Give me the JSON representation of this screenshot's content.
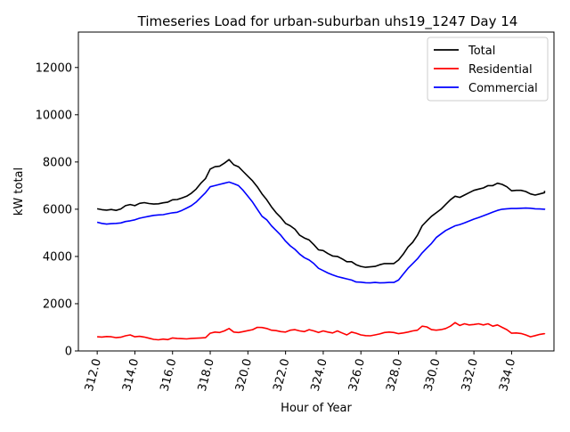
{
  "chart_data": {
    "type": "line",
    "title": "Timeseries Load for urban-suburban uhs19_1247  Day 14",
    "xlabel": "Hour of Year",
    "ylabel": "kW total",
    "xlim": [
      311.0,
      336.25
    ],
    "ylim": [
      0,
      13500
    ],
    "xticks": [
      312,
      314,
      316,
      318,
      320,
      322,
      324,
      326,
      328,
      330,
      332,
      334
    ],
    "xtick_labels": [
      "312.0",
      "314.0",
      "316.0",
      "318.0",
      "320.0",
      "322.0",
      "324.0",
      "326.0",
      "328.0",
      "330.0",
      "332.0",
      "334.0"
    ],
    "yticks": [
      0,
      2000,
      4000,
      6000,
      8000,
      10000,
      12000
    ],
    "ytick_labels": [
      "0",
      "2000",
      "4000",
      "6000",
      "8000",
      "10000",
      "12000"
    ],
    "legend_position": "top-right",
    "grid": false,
    "x": [
      312.0,
      312.25,
      312.5,
      312.75,
      313.0,
      313.25,
      313.5,
      313.75,
      314.0,
      314.25,
      314.5,
      314.75,
      315.0,
      315.25,
      315.5,
      315.75,
      316.0,
      316.25,
      316.5,
      316.75,
      317.0,
      317.25,
      317.5,
      317.75,
      318.0,
      318.25,
      318.5,
      318.75,
      319.0,
      319.25,
      319.5,
      319.75,
      320.0,
      320.25,
      320.5,
      320.75,
      321.0,
      321.25,
      321.5,
      321.75,
      322.0,
      322.25,
      322.5,
      322.75,
      323.0,
      323.25,
      323.5,
      323.75,
      324.0,
      324.25,
      324.5,
      324.75,
      325.0,
      325.25,
      325.5,
      325.75,
      326.0,
      326.25,
      326.5,
      326.75,
      327.0,
      327.25,
      327.5,
      327.75,
      328.0,
      328.25,
      328.5,
      328.75,
      329.0,
      329.25,
      329.5,
      329.75,
      330.0,
      330.25,
      330.5,
      330.75,
      331.0,
      331.25,
      331.5,
      331.75,
      332.0,
      332.25,
      332.5,
      332.75,
      333.0,
      333.25,
      333.5,
      333.75,
      334.0,
      334.25,
      334.5,
      334.75,
      335.0,
      335.25,
      335.5,
      335.75
    ],
    "series": [
      {
        "name": "Total",
        "color": "#000000",
        "values": [
          6020,
          5980,
          5960,
          5990,
          5950,
          6010,
          6150,
          6200,
          6150,
          6250,
          6280,
          6240,
          6220,
          6230,
          6270,
          6300,
          6400,
          6410,
          6480,
          6550,
          6680,
          6850,
          7100,
          7300,
          7700,
          7800,
          7820,
          7950,
          8100,
          7880,
          7800,
          7600,
          7400,
          7200,
          6950,
          6650,
          6400,
          6100,
          5850,
          5650,
          5400,
          5300,
          5150,
          4900,
          4780,
          4700,
          4500,
          4280,
          4250,
          4120,
          4020,
          4000,
          3900,
          3780,
          3780,
          3650,
          3580,
          3540,
          3560,
          3580,
          3650,
          3700,
          3700,
          3700,
          3850,
          4100,
          4400,
          4600,
          4900,
          5300,
          5500,
          5700,
          5850,
          6000,
          6200,
          6400,
          6550,
          6500,
          6600,
          6700,
          6800,
          6850,
          6900,
          7000,
          7000,
          7100,
          7050,
          6950,
          6780,
          6800,
          6800,
          6750,
          6650,
          6600,
          6650,
          6700
        ],
        "end_value": 6780
      },
      {
        "name": "Residential",
        "color": "#ff0000",
        "values": [
          600,
          590,
          610,
          600,
          560,
          580,
          640,
          680,
          600,
          620,
          590,
          540,
          490,
          470,
          500,
          480,
          550,
          530,
          520,
          510,
          530,
          540,
          550,
          560,
          750,
          800,
          780,
          850,
          950,
          800,
          780,
          820,
          860,
          900,
          1000,
          990,
          950,
          880,
          860,
          820,
          800,
          880,
          900,
          850,
          820,
          900,
          850,
          780,
          850,
          800,
          760,
          850,
          760,
          680,
          800,
          750,
          680,
          650,
          640,
          680,
          720,
          780,
          800,
          780,
          730,
          760,
          800,
          850,
          880,
          1050,
          1020,
          900,
          880,
          900,
          950,
          1050,
          1200,
          1080,
          1150,
          1100,
          1120,
          1150,
          1100,
          1150,
          1050,
          1100,
          1000,
          900,
          750,
          760,
          740,
          680,
          600,
          650,
          700,
          730
        ],
        "end_value": 750
      },
      {
        "name": "Commercial",
        "color": "#0000ff",
        "values": [
          5450,
          5400,
          5370,
          5390,
          5400,
          5420,
          5480,
          5510,
          5550,
          5620,
          5660,
          5700,
          5740,
          5760,
          5770,
          5810,
          5850,
          5870,
          5950,
          6050,
          6150,
          6300,
          6500,
          6700,
          6950,
          7000,
          7050,
          7100,
          7150,
          7080,
          7000,
          6800,
          6550,
          6300,
          6000,
          5700,
          5550,
          5300,
          5100,
          4900,
          4650,
          4450,
          4300,
          4100,
          3950,
          3850,
          3700,
          3500,
          3400,
          3300,
          3220,
          3150,
          3100,
          3050,
          3000,
          2920,
          2910,
          2890,
          2880,
          2900,
          2880,
          2890,
          2900,
          2900,
          3000,
          3250,
          3500,
          3700,
          3900,
          4150,
          4350,
          4550,
          4800,
          4950,
          5100,
          5200,
          5300,
          5350,
          5420,
          5500,
          5580,
          5650,
          5720,
          5800,
          5880,
          5950,
          6000,
          6020,
          6030,
          6030,
          6040,
          6050,
          6040,
          6020,
          6010,
          6000
        ],
        "end_value": 6030
      }
    ]
  }
}
